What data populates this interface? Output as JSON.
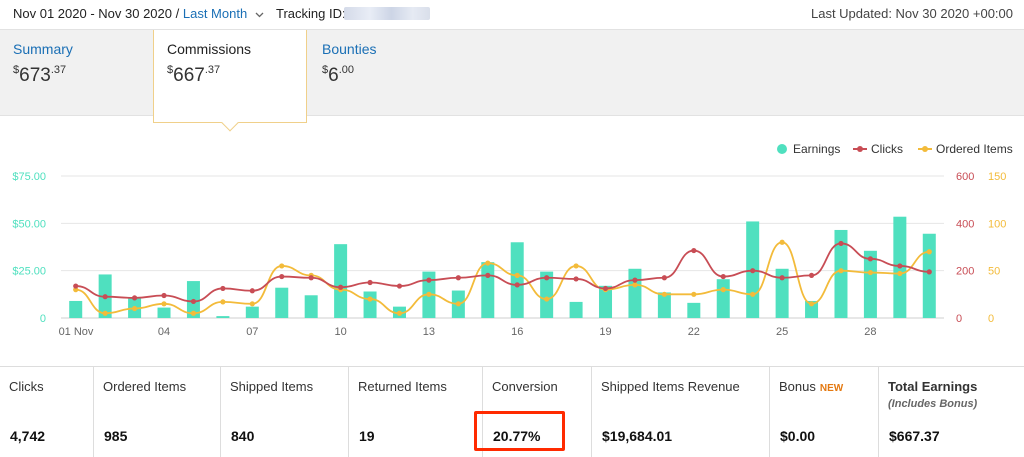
{
  "header": {
    "date_range": "Nov 01 2020 - Nov 30 2020 /",
    "range_link": "Last Month",
    "tracking_label": "Tracking ID:",
    "last_updated": "Last Updated: Nov 30 2020 +00:00"
  },
  "tabs": [
    {
      "label": "Summary",
      "dollar": "$",
      "whole": "673",
      "cents": ".37"
    },
    {
      "label": "Commissions",
      "dollar": "$",
      "whole": "667",
      "cents": ".37"
    },
    {
      "label": "Bounties",
      "dollar": "$",
      "whole": "6",
      "cents": ".00"
    }
  ],
  "icons": {
    "chevron": "chevron-down-icon"
  },
  "colors": {
    "earnings": "#4fe0bf",
    "clicks": "#c84d55",
    "ordered": "#f3bb3a",
    "link": "#1a6fb5",
    "highlight": "#ff2a00",
    "new_badge": "#e47911"
  },
  "chart_data": {
    "type": "bar",
    "legend": [
      "Earnings",
      "Clicks",
      "Ordered Items"
    ],
    "legend_position": "top-right",
    "x_tick_labels": [
      "01 Nov",
      "04",
      "07",
      "10",
      "13",
      "16",
      "19",
      "22",
      "25",
      "28"
    ],
    "left_axis": {
      "ticks": [
        "0",
        "$25.00",
        "$50.00",
        "$75.00"
      ],
      "range": [
        0,
        75
      ]
    },
    "right_axis_1": {
      "ticks": [
        "0",
        "200",
        "400",
        "600"
      ],
      "range": [
        0,
        600
      ]
    },
    "right_axis_2": {
      "ticks": [
        "0",
        "50",
        "100",
        "150"
      ],
      "range": [
        0,
        150
      ]
    },
    "grid": true,
    "series": [
      {
        "name": "Earnings",
        "axis": "left",
        "kind": "bar",
        "values": [
          9,
          23,
          11,
          5.5,
          19.5,
          1,
          6,
          16,
          12,
          39,
          14,
          6,
          24.5,
          14.5,
          29.5,
          40,
          24.5,
          8.5,
          17,
          26,
          13.5,
          8,
          20.5,
          51,
          26,
          9,
          46.5,
          35.5,
          53.5,
          44.5
        ]
      },
      {
        "name": "Clicks",
        "axis": "right1",
        "kind": "line",
        "values": [
          135,
          90,
          85,
          95,
          70,
          125,
          115,
          175,
          170,
          130,
          150,
          135,
          160,
          170,
          180,
          140,
          170,
          165,
          125,
          160,
          170,
          285,
          175,
          200,
          170,
          180,
          315,
          250,
          220,
          195
        ]
      },
      {
        "name": "Ordered Items",
        "axis": "right2",
        "kind": "line",
        "values": [
          30,
          5,
          10,
          15,
          5,
          17,
          15,
          55,
          45,
          30,
          20,
          5,
          25,
          15,
          58,
          45,
          20,
          55,
          30,
          35,
          25,
          25,
          30,
          25,
          80,
          15,
          50,
          48,
          47,
          70
        ]
      }
    ]
  },
  "stats": [
    {
      "label": "Clicks",
      "value": "4,742"
    },
    {
      "label": "Ordered Items",
      "value": "985"
    },
    {
      "label": "Shipped Items",
      "value": "840"
    },
    {
      "label": "Returned Items",
      "value": "19"
    },
    {
      "label": "Conversion",
      "value": "20.77%"
    },
    {
      "label": "Shipped Items Revenue",
      "value": "$19,684.01"
    },
    {
      "label": "Bonus",
      "badge": "NEW",
      "value": "$0.00"
    },
    {
      "label": "Total Earnings",
      "sublabel": "(Includes Bonus)",
      "value": "$667.37"
    }
  ]
}
